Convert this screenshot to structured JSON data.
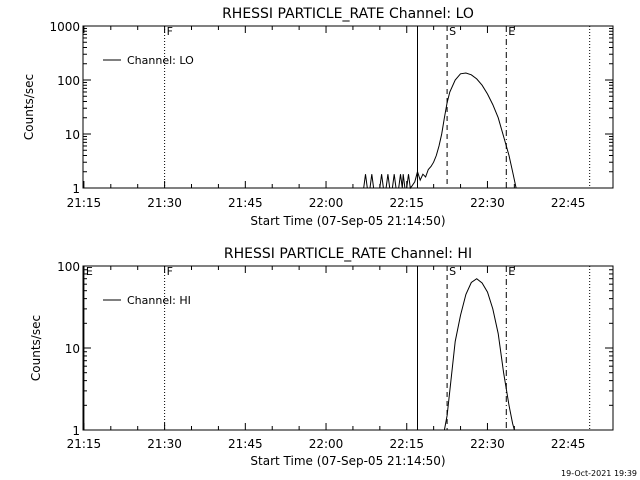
{
  "footer": {
    "timestamp": "19-Oct-2021 19:39"
  },
  "chart_data": [
    {
      "type": "line",
      "title": "RHESSI PARTICLE_RATE Channel: LO",
      "xlabel": "Start Time (07-Sep-05 21:14:50)",
      "ylabel": "Counts/sec",
      "yscale": "log",
      "ylim": [
        1,
        1000
      ],
      "xlim": [
        "21:14:50",
        "22:53:20"
      ],
      "x_ticks": [
        "21:15",
        "21:30",
        "21:45",
        "22:00",
        "22:15",
        "22:30",
        "22:45"
      ],
      "y_ticks": [
        "1",
        "10",
        "100",
        "1000"
      ],
      "legend": {
        "position": "top-left",
        "entries": [
          "Channel: LO"
        ]
      },
      "grid": false,
      "markers": [
        {
          "label": "F",
          "time": "21:30:00",
          "style": "dotted"
        },
        {
          "label": "",
          "time": "22:17:00",
          "style": "solid"
        },
        {
          "label": "S",
          "time": "22:22:30",
          "style": "dashed"
        },
        {
          "label": "E",
          "time": "22:33:30",
          "style": "dash-dot"
        },
        {
          "label": "",
          "time": "22:49:00",
          "style": "dotted"
        }
      ],
      "series": [
        {
          "name": "Channel: LO",
          "points": [
            [
              "22:07:00",
              1
            ],
            [
              "22:07:20",
              1.8
            ],
            [
              "22:07:40",
              1
            ],
            [
              "22:08:10",
              1
            ],
            [
              "22:08:30",
              1.8
            ],
            [
              "22:08:50",
              1
            ],
            [
              "22:10:00",
              1
            ],
            [
              "22:10:20",
              1.8
            ],
            [
              "22:10:40",
              1
            ],
            [
              "22:11:10",
              1
            ],
            [
              "22:11:30",
              1.8
            ],
            [
              "22:11:50",
              1
            ],
            [
              "22:12:20",
              1
            ],
            [
              "22:12:40",
              1.8
            ],
            [
              "22:13:00",
              1
            ],
            [
              "22:13:30",
              1
            ],
            [
              "22:13:50",
              1.8
            ],
            [
              "22:14:10",
              1
            ],
            [
              "22:14:20",
              1.8
            ],
            [
              "22:14:40",
              1
            ],
            [
              "22:15:00",
              1
            ],
            [
              "22:15:20",
              1.8
            ],
            [
              "22:15:40",
              1
            ],
            [
              "22:16:00",
              1.1
            ],
            [
              "22:16:30",
              1.3
            ],
            [
              "22:17:00",
              2
            ],
            [
              "22:17:30",
              1.4
            ],
            [
              "22:18:00",
              1.8
            ],
            [
              "22:18:30",
              1.6
            ],
            [
              "22:19:00",
              2.2
            ],
            [
              "22:19:30",
              2.5
            ],
            [
              "22:20:00",
              3
            ],
            [
              "22:20:30",
              4
            ],
            [
              "22:21:00",
              6
            ],
            [
              "22:21:30",
              10
            ],
            [
              "22:22:00",
              20
            ],
            [
              "22:22:30",
              38
            ],
            [
              "22:23:00",
              60
            ],
            [
              "22:24:00",
              100
            ],
            [
              "22:25:00",
              130
            ],
            [
              "22:26:00",
              135
            ],
            [
              "22:27:00",
              125
            ],
            [
              "22:28:00",
              105
            ],
            [
              "22:29:00",
              80
            ],
            [
              "22:30:00",
              55
            ],
            [
              "22:31:00",
              35
            ],
            [
              "22:32:00",
              20
            ],
            [
              "22:33:00",
              9
            ],
            [
              "22:34:00",
              4
            ],
            [
              "22:34:40",
              2
            ],
            [
              "22:35:20",
              1
            ]
          ]
        }
      ]
    },
    {
      "type": "line",
      "title": "RHESSI PARTICLE_RATE Channel: HI",
      "xlabel": "Start Time (07-Sep-05 21:14:50)",
      "ylabel": "Counts/sec",
      "yscale": "log",
      "ylim": [
        1,
        100
      ],
      "xlim": [
        "21:14:50",
        "22:53:20"
      ],
      "x_ticks": [
        "21:15",
        "21:30",
        "21:45",
        "22:00",
        "22:15",
        "22:30",
        "22:45"
      ],
      "y_ticks": [
        "1",
        "10",
        "100"
      ],
      "legend": {
        "position": "top-left",
        "entries": [
          "Channel: HI"
        ]
      },
      "grid": false,
      "markers": [
        {
          "label": "E",
          "time": "21:15:00",
          "style": "solid"
        },
        {
          "label": "F",
          "time": "21:30:00",
          "style": "dotted"
        },
        {
          "label": "",
          "time": "22:17:00",
          "style": "solid"
        },
        {
          "label": "S",
          "time": "22:22:30",
          "style": "dashed"
        },
        {
          "label": "E",
          "time": "22:33:30",
          "style": "dash-dot"
        },
        {
          "label": "",
          "time": "22:49:00",
          "style": "dotted"
        }
      ],
      "series": [
        {
          "name": "Channel: HI",
          "points": [
            [
              "22:22:00",
              1
            ],
            [
              "22:22:30",
              1.5
            ],
            [
              "22:23:00",
              3
            ],
            [
              "22:23:30",
              6
            ],
            [
              "22:24:00",
              12
            ],
            [
              "22:25:00",
              25
            ],
            [
              "22:26:00",
              45
            ],
            [
              "22:27:00",
              63
            ],
            [
              "22:28:00",
              70
            ],
            [
              "22:29:00",
              62
            ],
            [
              "22:30:00",
              48
            ],
            [
              "22:31:00",
              30
            ],
            [
              "22:32:00",
              15
            ],
            [
              "22:33:00",
              5
            ],
            [
              "22:34:00",
              2
            ],
            [
              "22:34:40",
              1.2
            ],
            [
              "22:35:00",
              1
            ]
          ]
        }
      ]
    }
  ]
}
